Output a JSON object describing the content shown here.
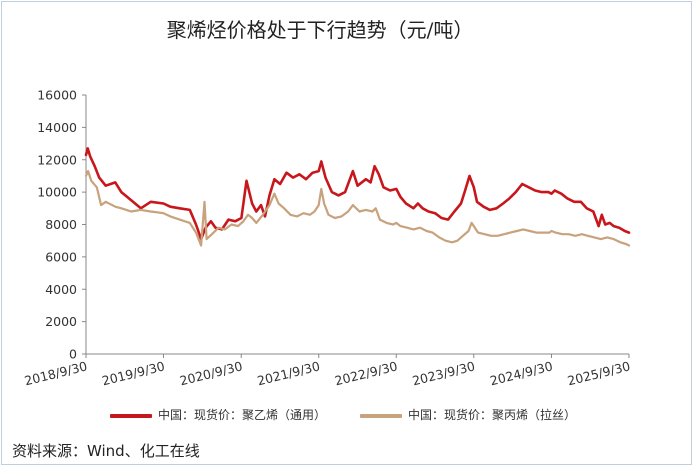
{
  "title": "聚烯烃价格处于下行趋势（元/吨）",
  "source": "资料来源：Wind、化工在线",
  "colors": {
    "series1": "#c8171c",
    "series2": "#c8a27c",
    "axis": "#888888",
    "text": "#333333"
  },
  "chart_data": {
    "type": "line",
    "title": "聚烯烃价格处于下行趋势（元/吨）",
    "xlabel": "",
    "ylabel": "",
    "ylim": [
      0,
      16000
    ],
    "yticks": [
      0,
      2000,
      4000,
      6000,
      8000,
      10000,
      12000,
      14000,
      16000
    ],
    "xlim": [
      "2018-09-30",
      "2025-09-30"
    ],
    "xticks": [
      "2018/9/30",
      "2019/9/30",
      "2020/9/30",
      "2021/9/30",
      "2022/9/30",
      "2023/9/30",
      "2024/9/30",
      "2025/9/30"
    ],
    "grid": false,
    "legend_position": "bottom",
    "series": [
      {
        "name": "中国：现货价：聚乙烯（通用）",
        "points": [
          [
            "2018-09-30",
            12300
          ],
          [
            "2018-10-08",
            12700
          ],
          [
            "2018-10-20",
            12200
          ],
          [
            "2018-11-10",
            11600
          ],
          [
            "2018-12-01",
            10900
          ],
          [
            "2019-01-01",
            10400
          ],
          [
            "2019-02-15",
            10600
          ],
          [
            "2019-03-15",
            10000
          ],
          [
            "2019-05-01",
            9500
          ],
          [
            "2019-06-15",
            9000
          ],
          [
            "2019-08-01",
            9400
          ],
          [
            "2019-09-30",
            9300
          ],
          [
            "2019-11-01",
            9100
          ],
          [
            "2019-12-15",
            9000
          ],
          [
            "2020-02-01",
            8900
          ],
          [
            "2020-03-01",
            8000
          ],
          [
            "2020-03-25",
            7100
          ],
          [
            "2020-04-15",
            7800
          ],
          [
            "2020-05-10",
            8200
          ],
          [
            "2020-06-01",
            7800
          ],
          [
            "2020-07-01",
            7700
          ],
          [
            "2020-08-01",
            8300
          ],
          [
            "2020-09-01",
            8200
          ],
          [
            "2020-10-01",
            8400
          ],
          [
            "2020-10-25",
            10700
          ],
          [
            "2020-11-20",
            9300
          ],
          [
            "2020-12-10",
            8800
          ],
          [
            "2021-01-01",
            9200
          ],
          [
            "2021-01-20",
            8500
          ],
          [
            "2021-02-10",
            9800
          ],
          [
            "2021-03-05",
            10800
          ],
          [
            "2021-04-01",
            10500
          ],
          [
            "2021-05-01",
            11200
          ],
          [
            "2021-06-01",
            10900
          ],
          [
            "2021-07-01",
            11100
          ],
          [
            "2021-08-01",
            10800
          ],
          [
            "2021-09-01",
            11200
          ],
          [
            "2021-09-30",
            11300
          ],
          [
            "2021-10-12",
            11900
          ],
          [
            "2021-11-01",
            10900
          ],
          [
            "2021-12-01",
            10000
          ],
          [
            "2022-01-01",
            9800
          ],
          [
            "2022-02-01",
            10000
          ],
          [
            "2022-03-10",
            11300
          ],
          [
            "2022-04-01",
            10400
          ],
          [
            "2022-05-10",
            10800
          ],
          [
            "2022-06-01",
            10600
          ],
          [
            "2022-06-20",
            11600
          ],
          [
            "2022-07-10",
            11100
          ],
          [
            "2022-08-01",
            10300
          ],
          [
            "2022-09-01",
            10100
          ],
          [
            "2022-09-30",
            10200
          ],
          [
            "2022-10-20",
            9700
          ],
          [
            "2022-11-15",
            9300
          ],
          [
            "2022-12-20",
            9000
          ],
          [
            "2023-01-10",
            9300
          ],
          [
            "2023-02-01",
            9000
          ],
          [
            "2023-03-01",
            8800
          ],
          [
            "2023-04-01",
            8700
          ],
          [
            "2023-05-01",
            8400
          ],
          [
            "2023-06-01",
            8300
          ],
          [
            "2023-07-01",
            8800
          ],
          [
            "2023-08-01",
            9300
          ],
          [
            "2023-08-20",
            10100
          ],
          [
            "2023-09-10",
            11000
          ],
          [
            "2023-09-30",
            10300
          ],
          [
            "2023-10-15",
            9400
          ],
          [
            "2023-11-15",
            9100
          ],
          [
            "2023-12-15",
            8900
          ],
          [
            "2024-01-15",
            9000
          ],
          [
            "2024-02-15",
            9300
          ],
          [
            "2024-03-15",
            9600
          ],
          [
            "2024-04-15",
            10000
          ],
          [
            "2024-05-15",
            10500
          ],
          [
            "2024-06-15",
            10300
          ],
          [
            "2024-07-15",
            10100
          ],
          [
            "2024-08-15",
            10000
          ],
          [
            "2024-09-15",
            10000
          ],
          [
            "2024-09-30",
            9900
          ],
          [
            "2024-10-15",
            10100
          ],
          [
            "2024-11-15",
            9900
          ],
          [
            "2024-12-15",
            9600
          ],
          [
            "2025-01-15",
            9400
          ],
          [
            "2025-02-15",
            9400
          ],
          [
            "2025-03-15",
            9000
          ],
          [
            "2025-04-15",
            8800
          ],
          [
            "2025-05-10",
            7900
          ],
          [
            "2025-05-25",
            8600
          ],
          [
            "2025-06-10",
            8000
          ],
          [
            "2025-07-01",
            8100
          ],
          [
            "2025-07-20",
            7900
          ],
          [
            "2025-08-15",
            7800
          ],
          [
            "2025-09-10",
            7600
          ],
          [
            "2025-09-30",
            7500
          ]
        ]
      },
      {
        "name": "中国：现货价：聚丙烯（拉丝）",
        "points": [
          [
            "2018-09-30",
            11000
          ],
          [
            "2018-10-10",
            11300
          ],
          [
            "2018-10-25",
            10700
          ],
          [
            "2018-11-20",
            10300
          ],
          [
            "2018-12-10",
            9200
          ],
          [
            "2019-01-01",
            9400
          ],
          [
            "2019-02-15",
            9100
          ],
          [
            "2019-03-15",
            9000
          ],
          [
            "2019-05-01",
            8800
          ],
          [
            "2019-06-15",
            8900
          ],
          [
            "2019-08-01",
            8800
          ],
          [
            "2019-09-30",
            8700
          ],
          [
            "2019-11-01",
            8500
          ],
          [
            "2019-12-15",
            8300
          ],
          [
            "2020-02-01",
            8100
          ],
          [
            "2020-03-01",
            7500
          ],
          [
            "2020-03-25",
            6700
          ],
          [
            "2020-04-10",
            9400
          ],
          [
            "2020-04-20",
            7100
          ],
          [
            "2020-05-15",
            7400
          ],
          [
            "2020-06-15",
            7800
          ],
          [
            "2020-07-15",
            7700
          ],
          [
            "2020-08-15",
            8000
          ],
          [
            "2020-09-15",
            7900
          ],
          [
            "2020-10-10",
            8200
          ],
          [
            "2020-11-01",
            8600
          ],
          [
            "2020-11-20",
            8400
          ],
          [
            "2020-12-10",
            8100
          ],
          [
            "2021-01-10",
            8600
          ],
          [
            "2021-02-10",
            9200
          ],
          [
            "2021-03-05",
            9900
          ],
          [
            "2021-03-25",
            9300
          ],
          [
            "2021-04-20",
            9000
          ],
          [
            "2021-05-20",
            8600
          ],
          [
            "2021-06-20",
            8500
          ],
          [
            "2021-07-20",
            8700
          ],
          [
            "2021-08-20",
            8600
          ],
          [
            "2021-09-10",
            8800
          ],
          [
            "2021-09-30",
            9200
          ],
          [
            "2021-10-12",
            10200
          ],
          [
            "2021-10-25",
            9300
          ],
          [
            "2021-11-15",
            8600
          ],
          [
            "2021-12-15",
            8400
          ],
          [
            "2022-01-15",
            8500
          ],
          [
            "2022-02-15",
            8800
          ],
          [
            "2022-03-10",
            9200
          ],
          [
            "2022-04-10",
            8800
          ],
          [
            "2022-05-10",
            8900
          ],
          [
            "2022-06-10",
            8800
          ],
          [
            "2022-06-25",
            9000
          ],
          [
            "2022-07-15",
            8300
          ],
          [
            "2022-08-15",
            8100
          ],
          [
            "2022-09-15",
            8000
          ],
          [
            "2022-09-30",
            8100
          ],
          [
            "2022-10-20",
            7900
          ],
          [
            "2022-11-20",
            7800
          ],
          [
            "2022-12-20",
            7700
          ],
          [
            "2023-01-20",
            7800
          ],
          [
            "2023-02-20",
            7600
          ],
          [
            "2023-03-20",
            7500
          ],
          [
            "2023-04-20",
            7200
          ],
          [
            "2023-05-20",
            7000
          ],
          [
            "2023-06-20",
            6900
          ],
          [
            "2023-07-15",
            7000
          ],
          [
            "2023-08-10",
            7300
          ],
          [
            "2023-09-05",
            7600
          ],
          [
            "2023-09-20",
            8100
          ],
          [
            "2023-09-30",
            7900
          ],
          [
            "2023-10-20",
            7500
          ],
          [
            "2023-11-20",
            7400
          ],
          [
            "2023-12-20",
            7300
          ],
          [
            "2024-01-20",
            7300
          ],
          [
            "2024-02-20",
            7400
          ],
          [
            "2024-03-20",
            7500
          ],
          [
            "2024-04-20",
            7600
          ],
          [
            "2024-05-20",
            7700
          ],
          [
            "2024-06-20",
            7600
          ],
          [
            "2024-07-20",
            7500
          ],
          [
            "2024-08-20",
            7500
          ],
          [
            "2024-09-20",
            7500
          ],
          [
            "2024-09-30",
            7600
          ],
          [
            "2024-10-20",
            7500
          ],
          [
            "2024-11-20",
            7400
          ],
          [
            "2024-12-20",
            7400
          ],
          [
            "2025-01-20",
            7300
          ],
          [
            "2025-02-20",
            7400
          ],
          [
            "2025-03-20",
            7300
          ],
          [
            "2025-04-20",
            7200
          ],
          [
            "2025-05-20",
            7100
          ],
          [
            "2025-06-20",
            7200
          ],
          [
            "2025-07-20",
            7100
          ],
          [
            "2025-08-20",
            6900
          ],
          [
            "2025-09-15",
            6800
          ],
          [
            "2025-09-30",
            6700
          ]
        ]
      }
    ]
  }
}
